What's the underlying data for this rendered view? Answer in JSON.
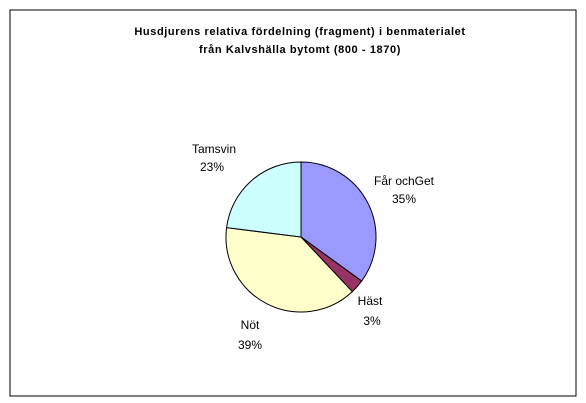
{
  "chart_data": {
    "type": "pie",
    "title": [
      "Husdjurens relativa fördelning (fragment) i benmaterialet",
      "från Kalvshälla bytomt (800 - 1870)"
    ],
    "categories": [
      "Får ochGet",
      "Häst",
      "Nöt",
      "Tamsvin"
    ],
    "values": [
      35,
      3,
      39,
      23
    ],
    "value_labels": [
      "35%",
      "3%",
      "39%",
      "23%"
    ],
    "colors": [
      "#9999ff",
      "#993366",
      "#ffffcc",
      "#ccffff"
    ]
  }
}
